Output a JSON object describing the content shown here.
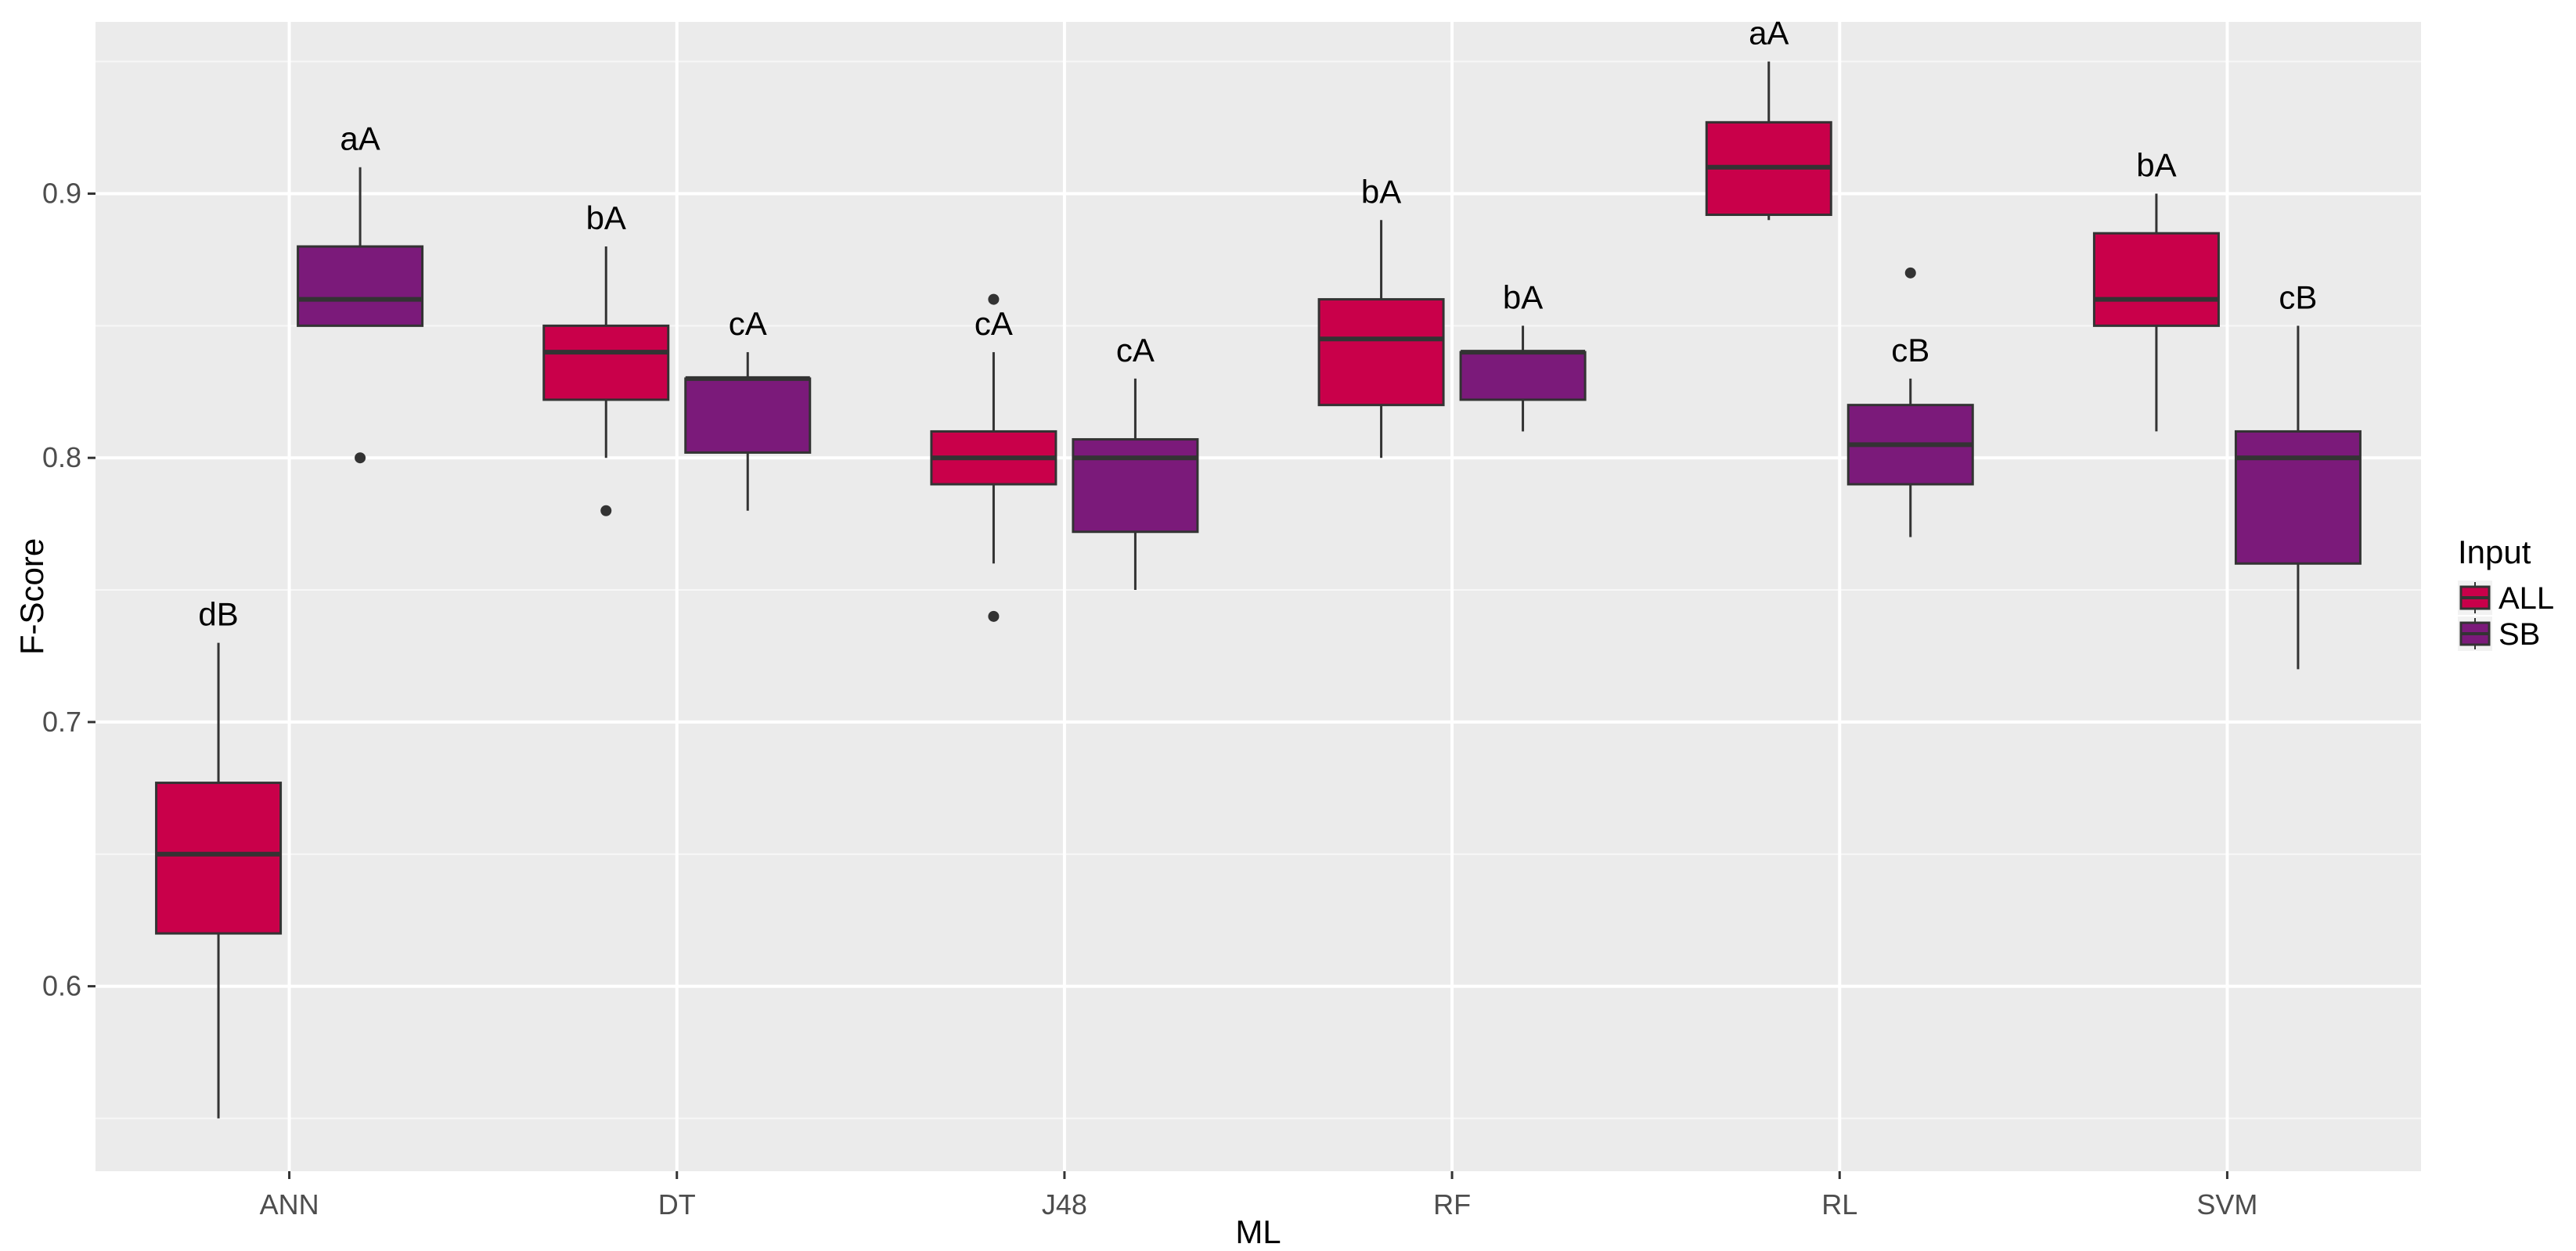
{
  "chart_data": {
    "type": "boxplot",
    "title": "",
    "xlabel": "ML",
    "ylabel": "F-Score",
    "ylim": [
      0.53,
      0.965
    ],
    "yticks": [
      0.6,
      0.7,
      0.8,
      0.9
    ],
    "ytick_labels": [
      "0.6",
      "0.7",
      "0.8",
      "0.9"
    ],
    "categories": [
      "ANN",
      "DT",
      "J48",
      "RF",
      "RL",
      "SVM"
    ],
    "legend": {
      "title": "Input",
      "position": "right",
      "entries": [
        {
          "name": "ALL",
          "color": "#c9004a"
        },
        {
          "name": "SB",
          "color": "#7b1a7a"
        }
      ]
    },
    "series": [
      {
        "name": "ALL",
        "color": "#c9004a",
        "boxes": [
          {
            "category": "ANN",
            "whisker_low": 0.55,
            "q1": 0.62,
            "median": 0.65,
            "q3": 0.677,
            "whisker_high": 0.73,
            "outliers": [],
            "label": "dB"
          },
          {
            "category": "DT",
            "whisker_low": 0.8,
            "q1": 0.822,
            "median": 0.84,
            "q3": 0.85,
            "whisker_high": 0.88,
            "outliers": [
              0.78
            ],
            "label": "bA"
          },
          {
            "category": "J48",
            "whisker_low": 0.76,
            "q1": 0.79,
            "median": 0.8,
            "q3": 0.81,
            "whisker_high": 0.84,
            "outliers": [
              0.74,
              0.86
            ],
            "label": "cA"
          },
          {
            "category": "RF",
            "whisker_low": 0.8,
            "q1": 0.82,
            "median": 0.845,
            "q3": 0.86,
            "whisker_high": 0.89,
            "outliers": [],
            "label": "bA"
          },
          {
            "category": "RL",
            "whisker_low": 0.89,
            "q1": 0.892,
            "median": 0.91,
            "q3": 0.927,
            "whisker_high": 0.95,
            "outliers": [],
            "label": "aA"
          },
          {
            "category": "SVM",
            "whisker_low": 0.81,
            "q1": 0.85,
            "median": 0.86,
            "q3": 0.885,
            "whisker_high": 0.9,
            "outliers": [],
            "label": "bA"
          }
        ]
      },
      {
        "name": "SB",
        "color": "#7b1a7a",
        "boxes": [
          {
            "category": "ANN",
            "whisker_low": 0.85,
            "q1": 0.85,
            "median": 0.86,
            "q3": 0.88,
            "whisker_high": 0.91,
            "outliers": [
              0.8
            ],
            "label": "aA"
          },
          {
            "category": "DT",
            "whisker_low": 0.78,
            "q1": 0.802,
            "median": 0.83,
            "q3": 0.83,
            "whisker_high": 0.84,
            "outliers": [],
            "label": "cA"
          },
          {
            "category": "J48",
            "whisker_low": 0.75,
            "q1": 0.772,
            "median": 0.8,
            "q3": 0.807,
            "whisker_high": 0.83,
            "outliers": [],
            "label": "cA"
          },
          {
            "category": "RF",
            "whisker_low": 0.81,
            "q1": 0.822,
            "median": 0.84,
            "q3": 0.84,
            "whisker_high": 0.85,
            "outliers": [],
            "label": "bA"
          },
          {
            "category": "RL",
            "whisker_low": 0.77,
            "q1": 0.79,
            "median": 0.805,
            "q3": 0.82,
            "whisker_high": 0.83,
            "outliers": [
              0.87
            ],
            "label": "cB"
          },
          {
            "category": "SVM",
            "whisker_low": 0.72,
            "q1": 0.76,
            "median": 0.8,
            "q3": 0.81,
            "whisker_high": 0.85,
            "outliers": [],
            "label": "cB"
          }
        ]
      }
    ]
  }
}
